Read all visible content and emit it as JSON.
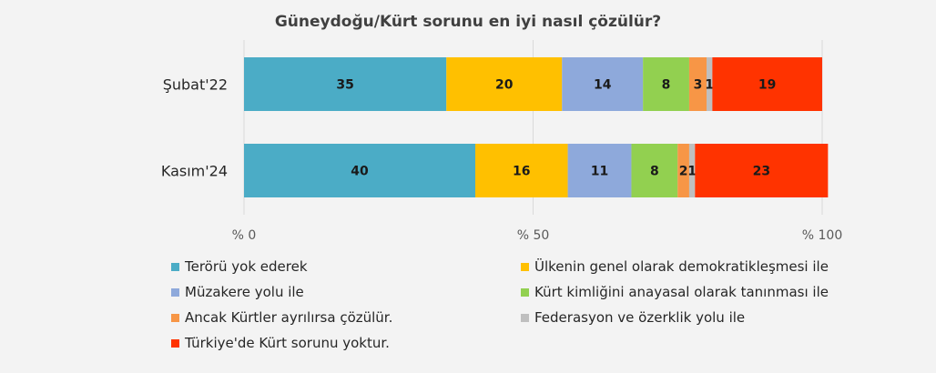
{
  "chart_data": {
    "type": "bar",
    "orientation": "horizontal",
    "stacked": true,
    "title": "Güneydoğu/Kürt sorunu en iyi nasıl çözülür?",
    "categories": [
      "Şubat'22",
      "Kasım'24"
    ],
    "series": [
      {
        "name": "Terörü yok ederek",
        "color": "#4bacc6",
        "values": [
          35,
          40
        ]
      },
      {
        "name": "Ülkenin genel olarak demokratikleşmesi ile",
        "color": "#ffc000",
        "values": [
          20,
          16
        ]
      },
      {
        "name": "Müzakere yolu ile",
        "color": "#8ea9db",
        "values": [
          14,
          11
        ]
      },
      {
        "name": "Kürt kimliğini anayasal olarak tanınması ile",
        "color": "#92d050",
        "values": [
          8,
          8
        ]
      },
      {
        "name": "Ancak Kürtler ayrılırsa çözülür.",
        "color": "#f79646",
        "values": [
          3,
          2
        ]
      },
      {
        "name": "Federasyon ve özerklik yolu ile",
        "color": "#bfbfbf",
        "values": [
          1,
          1
        ]
      },
      {
        "name": "Türkiye'de Kürt sorunu yoktur.",
        "color": "#ff3300",
        "values": [
          19,
          23
        ]
      }
    ],
    "xlim": [
      0,
      100
    ],
    "x_ticks": [
      0,
      50,
      100
    ],
    "x_tick_labels": [
      "% 0",
      "% 50",
      "% 100"
    ],
    "legend_position": "bottom",
    "grid": "vertical"
  }
}
